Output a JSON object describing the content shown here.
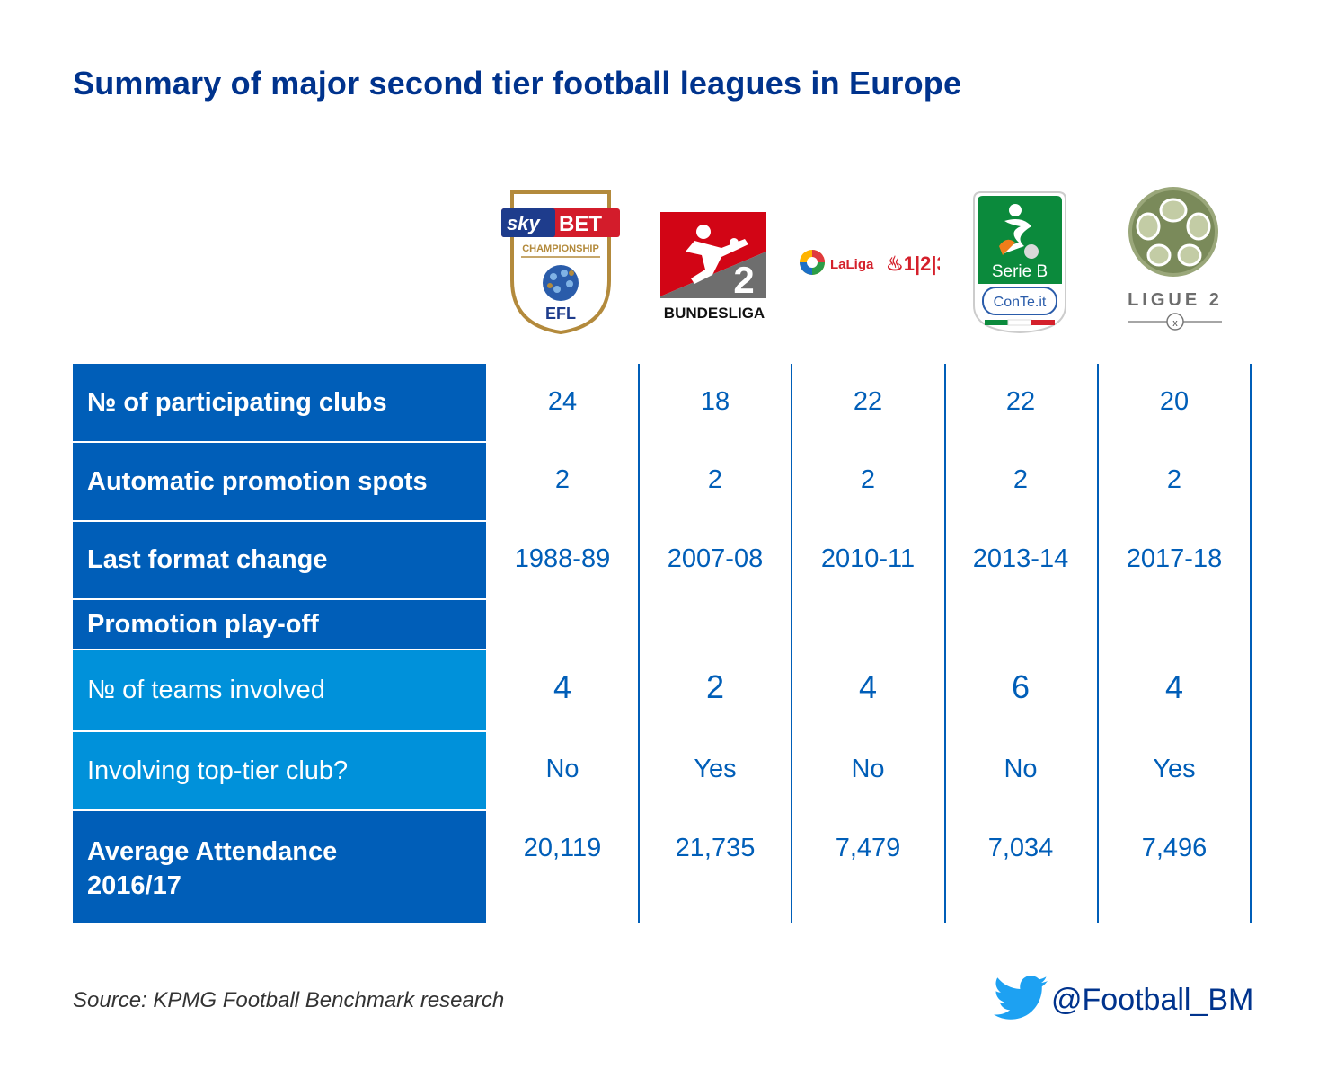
{
  "title": "Summary of major second tier football leagues in Europe",
  "leagues": [
    {
      "logo": "sky-bet-championship-efl-logo",
      "logo_texts": [
        "sky",
        "BET",
        "CHAMPIONSHIP",
        "EFL"
      ]
    },
    {
      "logo": "2-bundesliga-logo",
      "logo_texts": [
        "2",
        "BUNDESLIGA"
      ]
    },
    {
      "logo": "laliga-123-logo",
      "logo_texts": [
        "LaLiga",
        "1|2|3"
      ]
    },
    {
      "logo": "serie-b-conte-logo",
      "logo_texts": [
        "Serie B",
        "ConTe.it"
      ]
    },
    {
      "logo": "ligue-2-logo",
      "logo_texts": [
        "LIGUE 2"
      ]
    }
  ],
  "colors": {
    "dark_blue": "#005eb8",
    "light_blue": "#0091da",
    "title_blue": "#00338d"
  },
  "chart_data": {
    "type": "table",
    "rows": [
      {
        "label": "№ of participating clubs",
        "values": [
          "24",
          "18",
          "22",
          "22",
          "20"
        ]
      },
      {
        "label": "Automatic promotion spots",
        "values": [
          "2",
          "2",
          "2",
          "2",
          "2"
        ]
      },
      {
        "label": "Last format change",
        "values": [
          "1988-89",
          "2007-08",
          "2010-11",
          "2013-14",
          "2017-18"
        ]
      },
      {
        "label": "Promotion play-off",
        "values": []
      },
      {
        "label": "№ of teams involved",
        "values": [
          "4",
          "2",
          "4",
          "6",
          "4"
        ]
      },
      {
        "label": "Involving top-tier club?",
        "values": [
          "No",
          "Yes",
          "No",
          "No",
          "Yes"
        ]
      },
      {
        "label": "Average Attendance 2016/17",
        "values": [
          "20,119",
          "21,735",
          "7,479",
          "7,034",
          "7,496"
        ]
      }
    ]
  },
  "footer": {
    "source": "Source: KPMG Football Benchmark research",
    "handle": "@Football_BM",
    "twitter_icon": "twitter-bird-icon"
  }
}
